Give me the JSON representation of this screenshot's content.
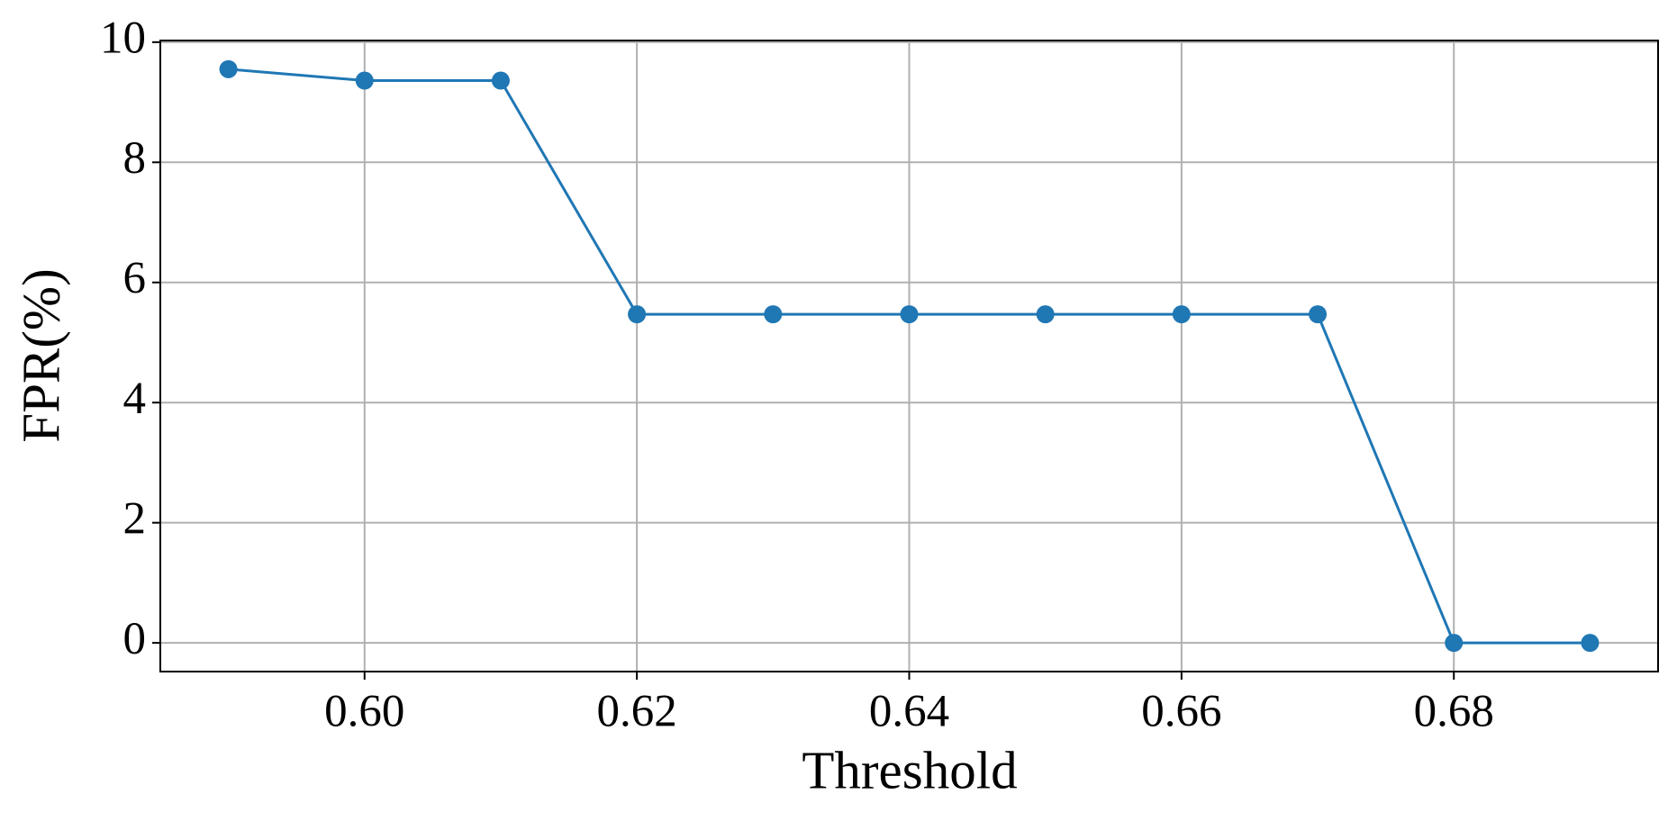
{
  "chart_data": {
    "type": "line",
    "xlabel": "Threshold",
    "ylabel": "FPR(%)",
    "x": [
      0.59,
      0.6,
      0.61,
      0.62,
      0.63,
      0.64,
      0.65,
      0.66,
      0.67,
      0.68,
      0.69
    ],
    "series": [
      {
        "color": "#1f77b4",
        "values": [
          9.55,
          9.36,
          9.36,
          5.47,
          5.47,
          5.47,
          5.47,
          5.47,
          5.47,
          0,
          0
        ]
      }
    ],
    "xlim": [
      0.585,
      0.695
    ],
    "ylim": [
      -0.4775,
      10.0275
    ],
    "xticks": [
      {
        "value": 0.6,
        "label": "0.60"
      },
      {
        "value": 0.62,
        "label": "0.62"
      },
      {
        "value": 0.64,
        "label": "0.64"
      },
      {
        "value": 0.66,
        "label": "0.66"
      },
      {
        "value": 0.68,
        "label": "0.68"
      }
    ],
    "yticks": [
      0,
      2,
      4,
      6,
      8,
      10
    ],
    "grid": true
  }
}
